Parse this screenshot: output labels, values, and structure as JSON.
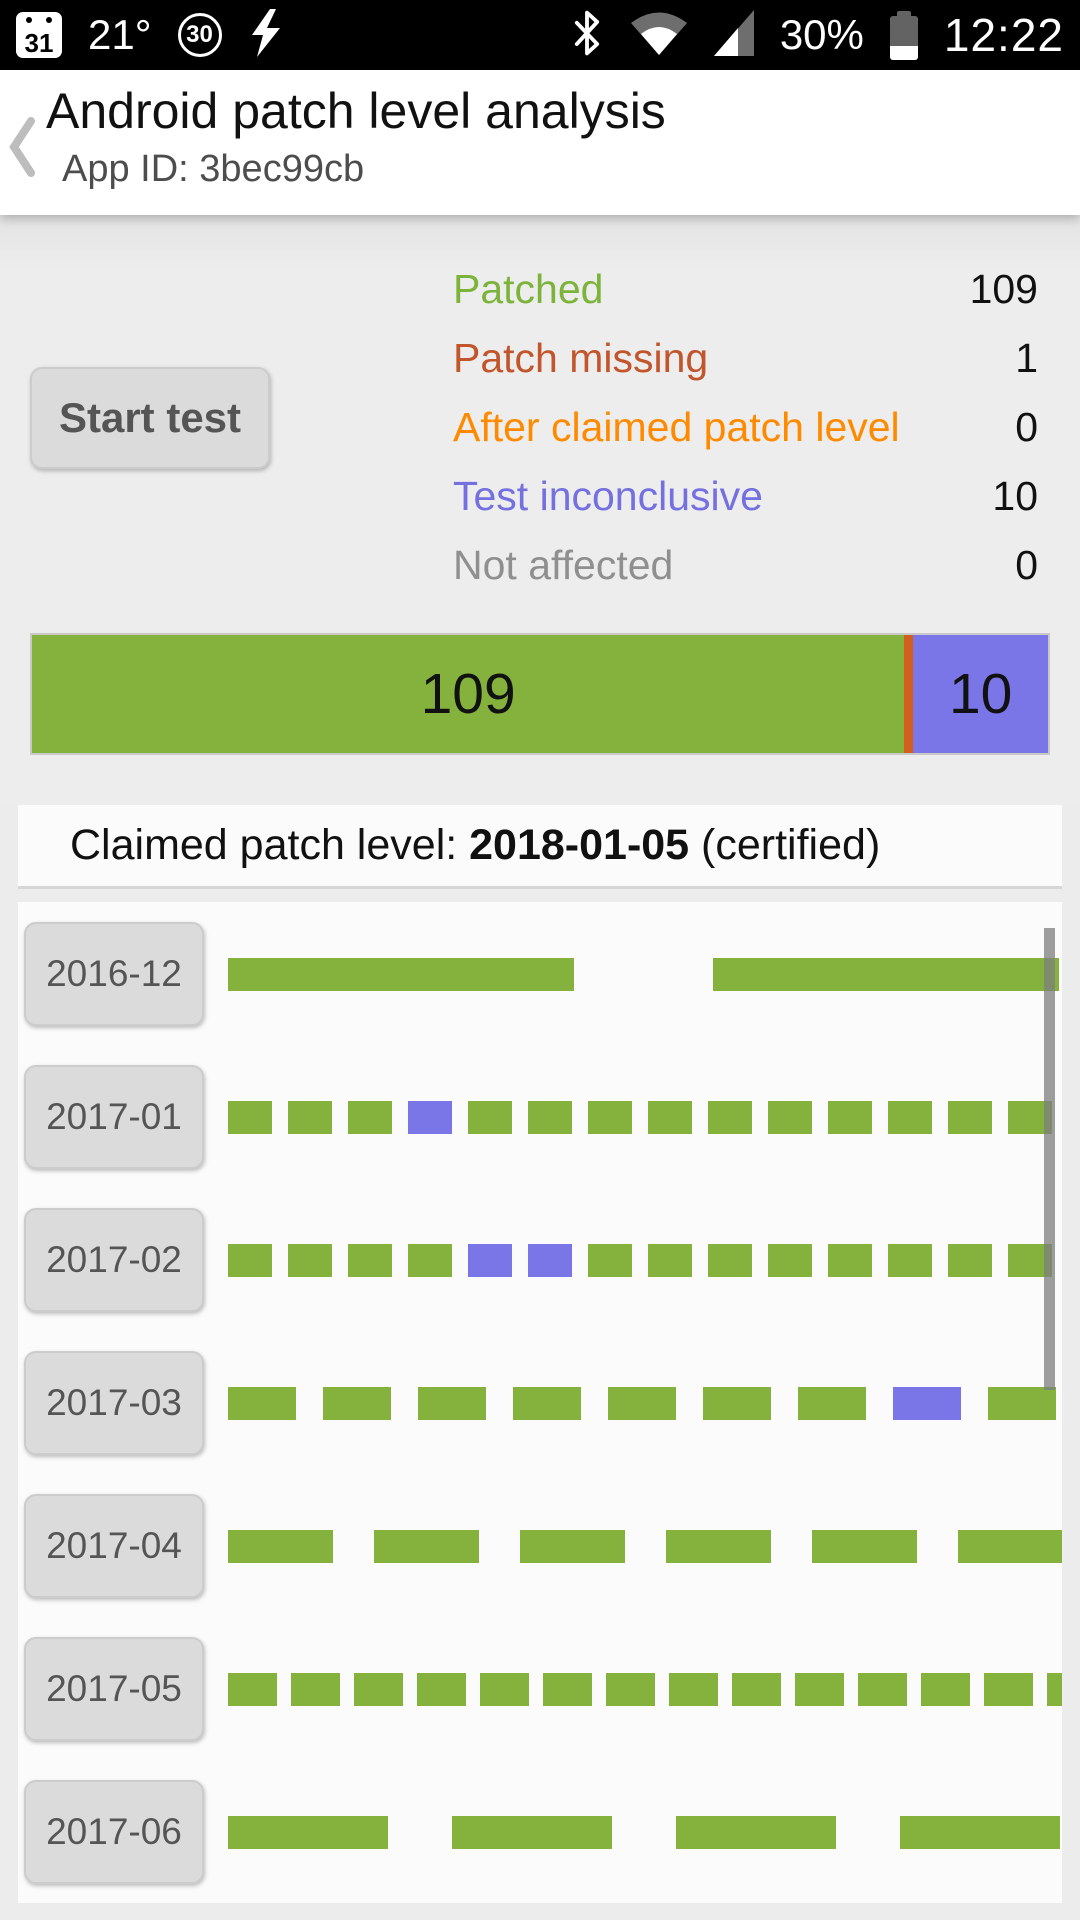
{
  "status_bar": {
    "calendar_day": "31",
    "temperature": "21°",
    "circle_value": "30",
    "battery_percent": "30%",
    "time": "12:22"
  },
  "header": {
    "title": "Android patch level analysis",
    "subtitle": "App ID: 3bec99cb"
  },
  "stats": {
    "start_button_label": "Start test",
    "legend": [
      {
        "label": "Patched",
        "value": "109",
        "color": "#7CB33B"
      },
      {
        "label": "Patch missing",
        "value": "1",
        "color": "#C2552B"
      },
      {
        "label": "After claimed patch level",
        "value": "0",
        "color": "#FF8A00"
      },
      {
        "label": "Test inconclusive",
        "value": "10",
        "color": "#7470E0"
      },
      {
        "label": "Not affected",
        "value": "0",
        "color": "#8F8F8F"
      }
    ],
    "stacked_bar": [
      {
        "name": "patched",
        "value": 109,
        "label": "109",
        "color": "#85B23C"
      },
      {
        "name": "patch-missing",
        "value": 1,
        "label": "",
        "color": "#D25F1E"
      },
      {
        "name": "inconclusive",
        "value": 10,
        "label": "10",
        "color": "#7A76E8"
      }
    ]
  },
  "claimed": {
    "prefix": "Claimed patch level: ",
    "date": "2018-01-05",
    "suffix": " (certified)"
  },
  "patch_table": {
    "seg_colors": {
      "g": "#85B23C",
      "p": "#7A76E8"
    },
    "months": [
      {
        "label": "2016-12",
        "seg_w": 346,
        "gap_w": 139,
        "segments": [
          "g",
          "g"
        ]
      },
      {
        "label": "2017-01",
        "seg_w": 44,
        "gap_w": 16,
        "segments": [
          "g",
          "g",
          "g",
          "p",
          "g",
          "g",
          "g",
          "g",
          "g",
          "g",
          "g",
          "g",
          "g",
          "g"
        ]
      },
      {
        "label": "2017-02",
        "seg_w": 44,
        "gap_w": 16,
        "segments": [
          "g",
          "g",
          "g",
          "g",
          "p",
          "p",
          "g",
          "g",
          "g",
          "g",
          "g",
          "g",
          "g",
          "g"
        ]
      },
      {
        "label": "2017-03",
        "seg_w": 68,
        "gap_w": 27,
        "segments": [
          "g",
          "g",
          "g",
          "g",
          "g",
          "g",
          "g",
          "p",
          "g"
        ]
      },
      {
        "label": "2017-04",
        "seg_w": 105,
        "gap_w": 41,
        "segments": [
          "g",
          "g",
          "g",
          "g",
          "g",
          "g"
        ]
      },
      {
        "label": "2017-05",
        "seg_w": 49,
        "gap_w": 14,
        "segments": [
          "g",
          "g",
          "g",
          "g",
          "g",
          "g",
          "g",
          "g",
          "g",
          "g",
          "g",
          "g",
          "g",
          "g"
        ]
      },
      {
        "label": "2017-06",
        "seg_w": 160,
        "gap_w": 64,
        "segments": [
          "g",
          "g",
          "g",
          "g"
        ]
      }
    ]
  }
}
